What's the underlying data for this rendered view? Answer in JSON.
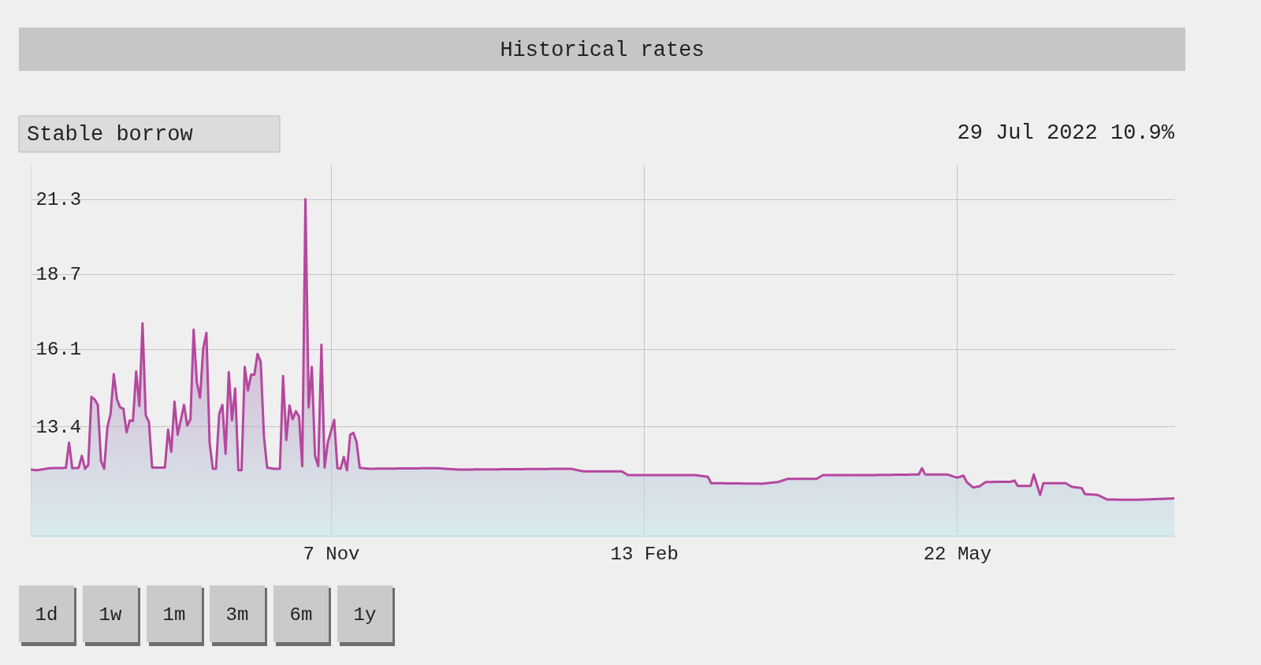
{
  "chart_data": {
    "type": "area",
    "title": "Historical rates",
    "annotations": [
      "Stable borrow",
      "29 Jul 2022 10.9%",
      "1d",
      "1w",
      "1m",
      "3m",
      "6m",
      "1y"
    ],
    "x": [
      "2021-08-05",
      "2021-08-07",
      "2021-08-11",
      "2021-08-16",
      "2021-08-17",
      "2021-08-18",
      "2021-08-20",
      "2021-08-21",
      "2021-08-22",
      "2021-08-23",
      "2021-08-24",
      "2021-08-25",
      "2021-08-26",
      "2021-08-27",
      "2021-08-28",
      "2021-08-29",
      "2021-08-30",
      "2021-08-31",
      "2021-09-01",
      "2021-09-02",
      "2021-09-03",
      "2021-09-04",
      "2021-09-05",
      "2021-09-06",
      "2021-09-07",
      "2021-09-08",
      "2021-09-09",
      "2021-09-10",
      "2021-09-11",
      "2021-09-12",
      "2021-09-16",
      "2021-09-17",
      "2021-09-18",
      "2021-09-19",
      "2021-09-20",
      "2021-09-22",
      "2021-09-23",
      "2021-09-24",
      "2021-09-25",
      "2021-09-26",
      "2021-09-27",
      "2021-09-28",
      "2021-09-29",
      "2021-09-30",
      "2021-10-01",
      "2021-10-02",
      "2021-10-03",
      "2021-10-04",
      "2021-10-05",
      "2021-10-06",
      "2021-10-07",
      "2021-10-08",
      "2021-10-09",
      "2021-10-10",
      "2021-10-11",
      "2021-10-12",
      "2021-10-13",
      "2021-10-14",
      "2021-10-15",
      "2021-10-16",
      "2021-10-17",
      "2021-10-18",
      "2021-10-20",
      "2021-10-22",
      "2021-10-23",
      "2021-10-24",
      "2021-10-25",
      "2021-10-26",
      "2021-10-27",
      "2021-10-28",
      "2021-10-29",
      "2021-10-30",
      "2021-10-31",
      "2021-11-01",
      "2021-11-02",
      "2021-11-03",
      "2021-11-04",
      "2021-11-05",
      "2021-11-06",
      "2021-11-08",
      "2021-11-09",
      "2021-11-10",
      "2021-11-11",
      "2021-11-12",
      "2021-11-13",
      "2021-11-14",
      "2021-11-15",
      "2021-11-16",
      "2021-11-19",
      "2021-12-10",
      "2021-12-17",
      "2022-01-21",
      "2022-01-25",
      "2022-02-06",
      "2022-02-08",
      "2022-02-23",
      "2022-03-01",
      "2022-03-05",
      "2022-03-06",
      "2022-03-22",
      "2022-03-27",
      "2022-03-30",
      "2022-04-08",
      "2022-04-10",
      "2022-04-25",
      "2022-05-10",
      "2022-05-11",
      "2022-05-12",
      "2022-05-19",
      "2022-05-22",
      "2022-05-24",
      "2022-05-25",
      "2022-05-27",
      "2022-05-29",
      "2022-05-31",
      "2022-06-08",
      "2022-06-09",
      "2022-06-10",
      "2022-06-14",
      "2022-06-15",
      "2022-06-17",
      "2022-06-18",
      "2022-06-25",
      "2022-06-27",
      "2022-06-30",
      "2022-07-01",
      "2022-07-05",
      "2022-07-08",
      "2022-07-17",
      "2022-07-22",
      "2022-07-29"
    ],
    "series": [
      {
        "color": "#b5479e",
        "values": [
          11.9,
          11.88,
          11.95,
          11.96,
          12.84,
          11.95,
          11.96,
          12.38,
          11.93,
          12.06,
          14.43,
          14.34,
          14.15,
          12.2,
          11.93,
          13.38,
          13.84,
          15.22,
          14.34,
          14.06,
          14.02,
          13.2,
          13.61,
          13.59,
          15.32,
          14.11,
          16.99,
          13.79,
          13.56,
          11.97,
          11.97,
          13.29,
          12.52,
          14.26,
          13.11,
          14.15,
          13.43,
          13.65,
          16.76,
          14.93,
          14.4,
          16.11,
          16.65,
          12.84,
          11.93,
          11.93,
          13.84,
          14.15,
          12.45,
          15.29,
          13.61,
          14.72,
          11.88,
          11.88,
          15.47,
          14.65,
          15.2,
          15.2,
          15.92,
          15.65,
          13.06,
          11.97,
          11.93,
          11.93,
          15.15,
          12.93,
          14.13,
          13.65,
          13.93,
          13.75,
          12.02,
          21.3,
          14.06,
          15.47,
          12.38,
          12.02,
          16.24,
          11.97,
          12.84,
          13.63,
          11.95,
          11.93,
          12.34,
          11.88,
          13.11,
          13.18,
          12.86,
          11.96,
          11.93,
          11.95,
          11.9,
          11.93,
          11.84,
          11.84,
          11.71,
          11.71,
          11.71,
          11.65,
          11.43,
          11.41,
          11.47,
          11.58,
          11.58,
          11.71,
          11.71,
          11.73,
          11.95,
          11.73,
          11.73,
          11.62,
          11.69,
          11.47,
          11.28,
          11.32,
          11.47,
          11.48,
          11.52,
          11.33,
          11.33,
          11.73,
          11.02,
          11.43,
          11.43,
          11.3,
          11.26,
          11.05,
          11.02,
          10.86,
          10.85,
          10.87,
          10.9
        ]
      }
    ],
    "xlim": [
      "2021-08-05",
      "2022-07-29"
    ],
    "xticks": [
      {
        "value": "2021-11-07",
        "label": "7 Nov"
      },
      {
        "value": "2022-02-13",
        "label": "13 Feb"
      },
      {
        "value": "2022-05-22",
        "label": "22 May"
      }
    ],
    "ylim": [
      9.6,
      22.5
    ],
    "yticks": [
      13.4,
      16.1,
      18.7,
      21.3
    ],
    "grid": true,
    "marker": "none",
    "line_style": "solid"
  }
}
